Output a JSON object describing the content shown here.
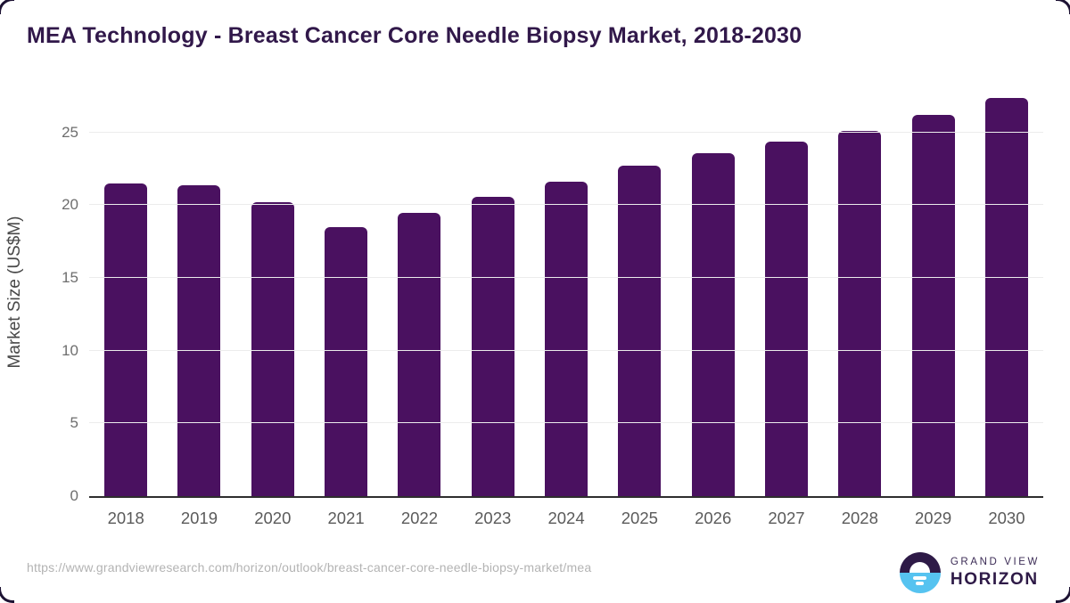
{
  "header": {
    "title": "MEA Technology - Breast Cancer Core Needle Biopsy Market, 2018-2030"
  },
  "chart_data": {
    "type": "bar",
    "title": "MEA Technology - Breast Cancer Core Needle Biopsy Market, 2018-2030",
    "xlabel": "",
    "ylabel": "Market Size (US$M)",
    "categories": [
      "2018",
      "2019",
      "2020",
      "2021",
      "2022",
      "2023",
      "2024",
      "2025",
      "2026",
      "2027",
      "2028",
      "2029",
      "2030"
    ],
    "values": [
      21.5,
      21.4,
      20.2,
      18.5,
      19.5,
      20.6,
      21.6,
      22.7,
      23.6,
      24.4,
      25.1,
      26.2,
      27.4
    ],
    "yticks": [
      0,
      5,
      10,
      15,
      20,
      25
    ],
    "ylim": [
      0,
      28.5
    ],
    "grid": true,
    "legend": false,
    "bar_color": "#4a1160"
  },
  "footer": {
    "source_url": "https://www.grandviewresearch.com/horizon/outlook/breast-cancer-core-needle-biopsy-market/mea",
    "logo": {
      "line1": "GRAND VIEW",
      "line2": "HORIZON"
    }
  },
  "colors": {
    "bar": "#4a1160",
    "title_text": "#31184a",
    "gridline": "#ececec",
    "axis_line": "#2e2e2e",
    "tick_text": "#6e6e6e",
    "url_text": "#b3b3b3",
    "logo_dark": "#2e1a47",
    "logo_blue": "#56c3f0"
  }
}
